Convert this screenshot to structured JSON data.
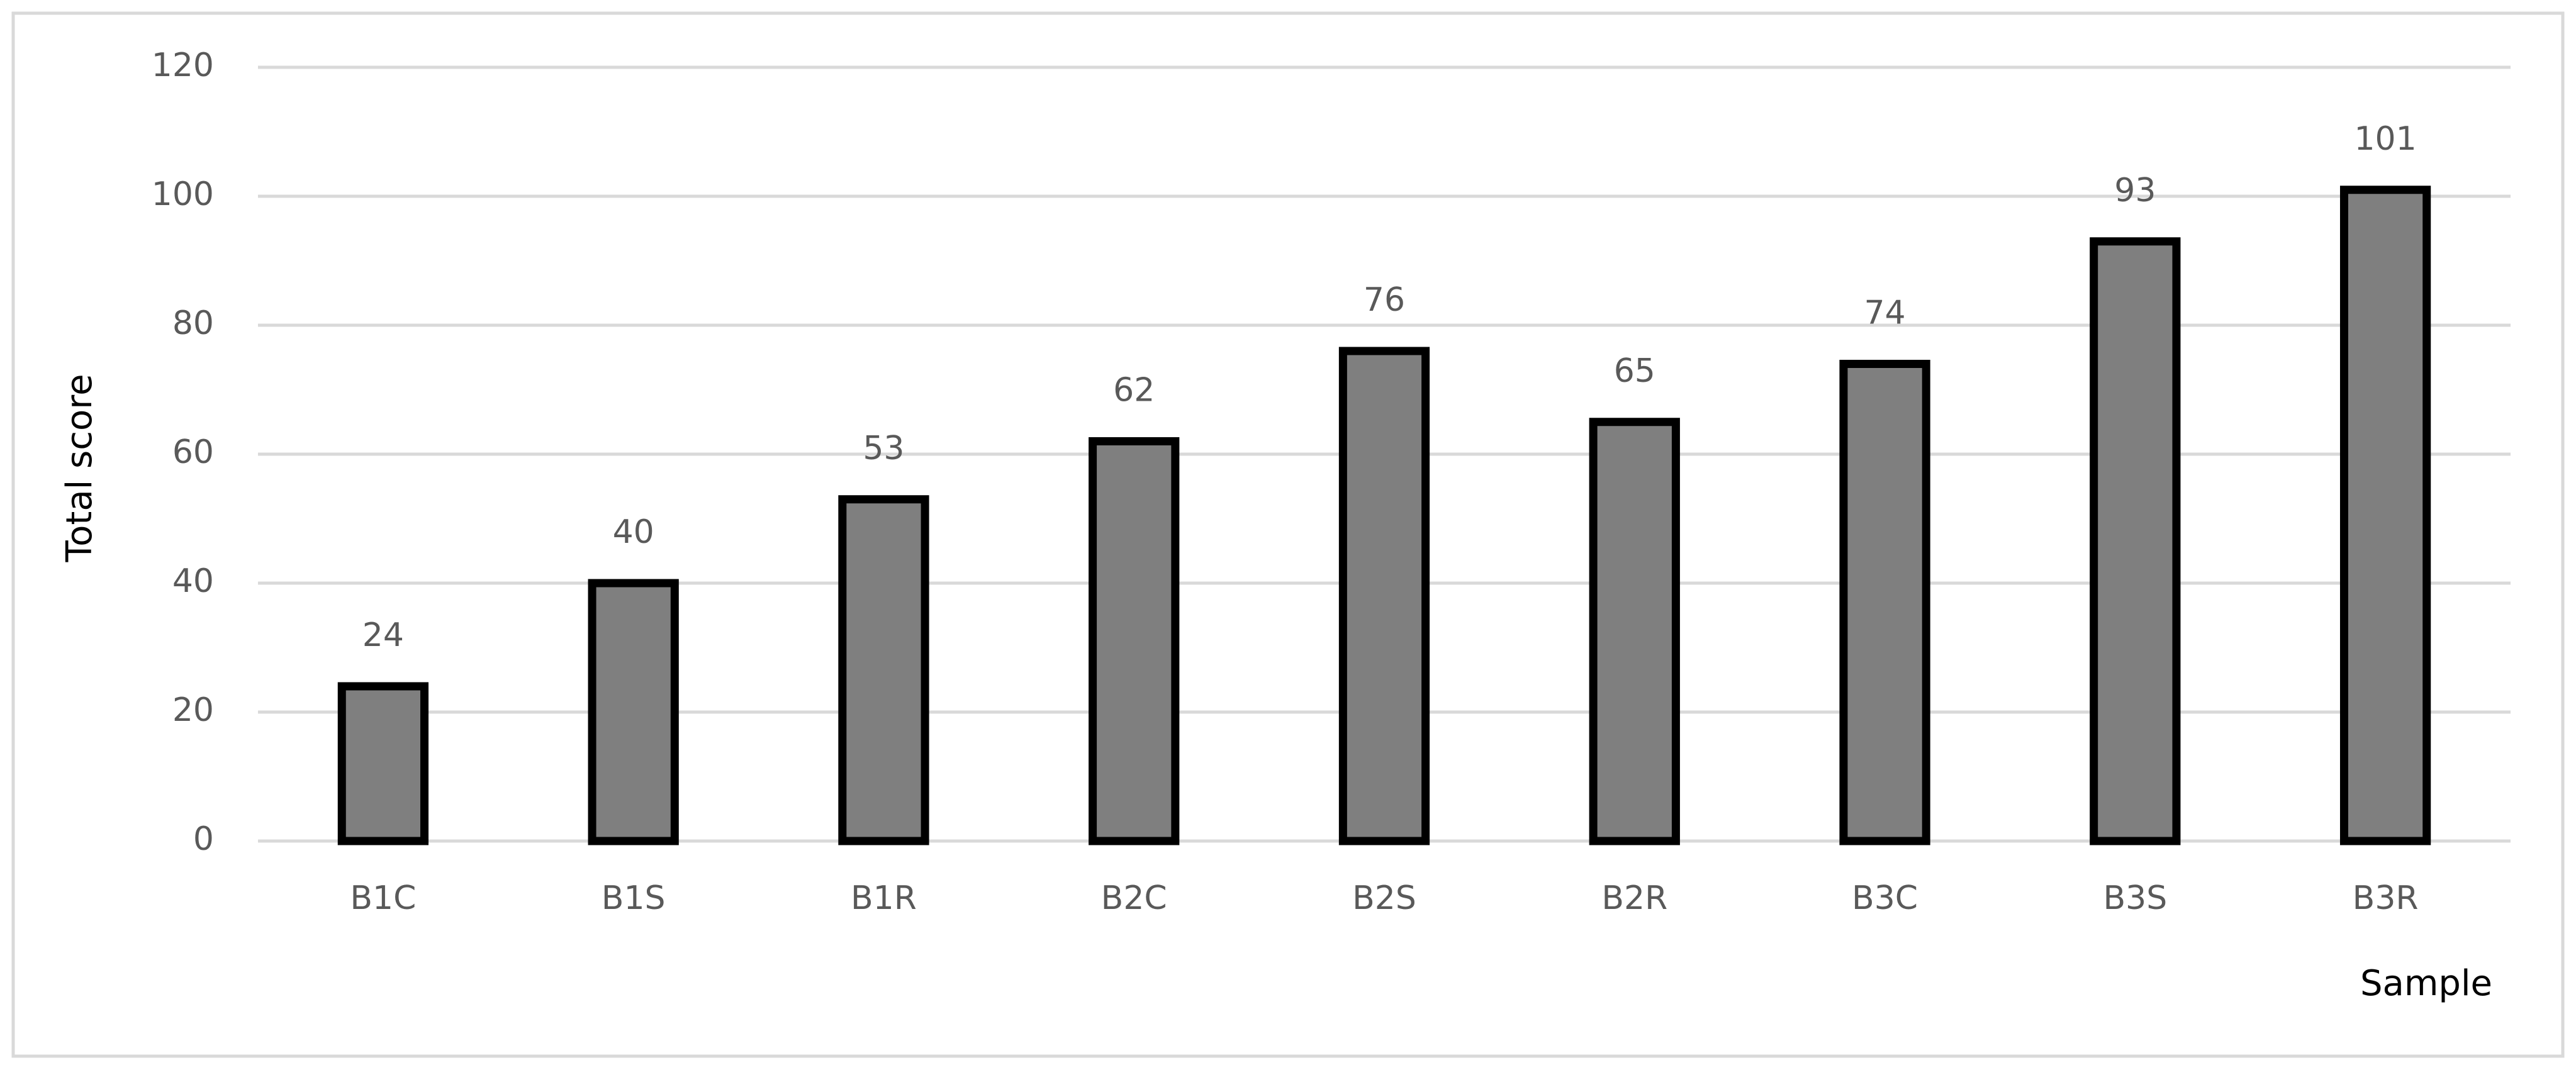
{
  "chart_data": {
    "type": "bar",
    "x_label": "Sample",
    "y_label": "Total score",
    "categories": [
      "B1C",
      "B1S",
      "B1R",
      "B2C",
      "B2S",
      "B2R",
      "B3C",
      "B3S",
      "B3R"
    ],
    "values": [
      24,
      40,
      53,
      62,
      76,
      65,
      74,
      93,
      101
    ],
    "color": "#7f7f7f",
    "edge_color": "#000000",
    "ylim": [
      0,
      120
    ],
    "yticks": [
      0,
      20,
      40,
      60,
      80,
      100,
      120
    ],
    "grid": true
  }
}
